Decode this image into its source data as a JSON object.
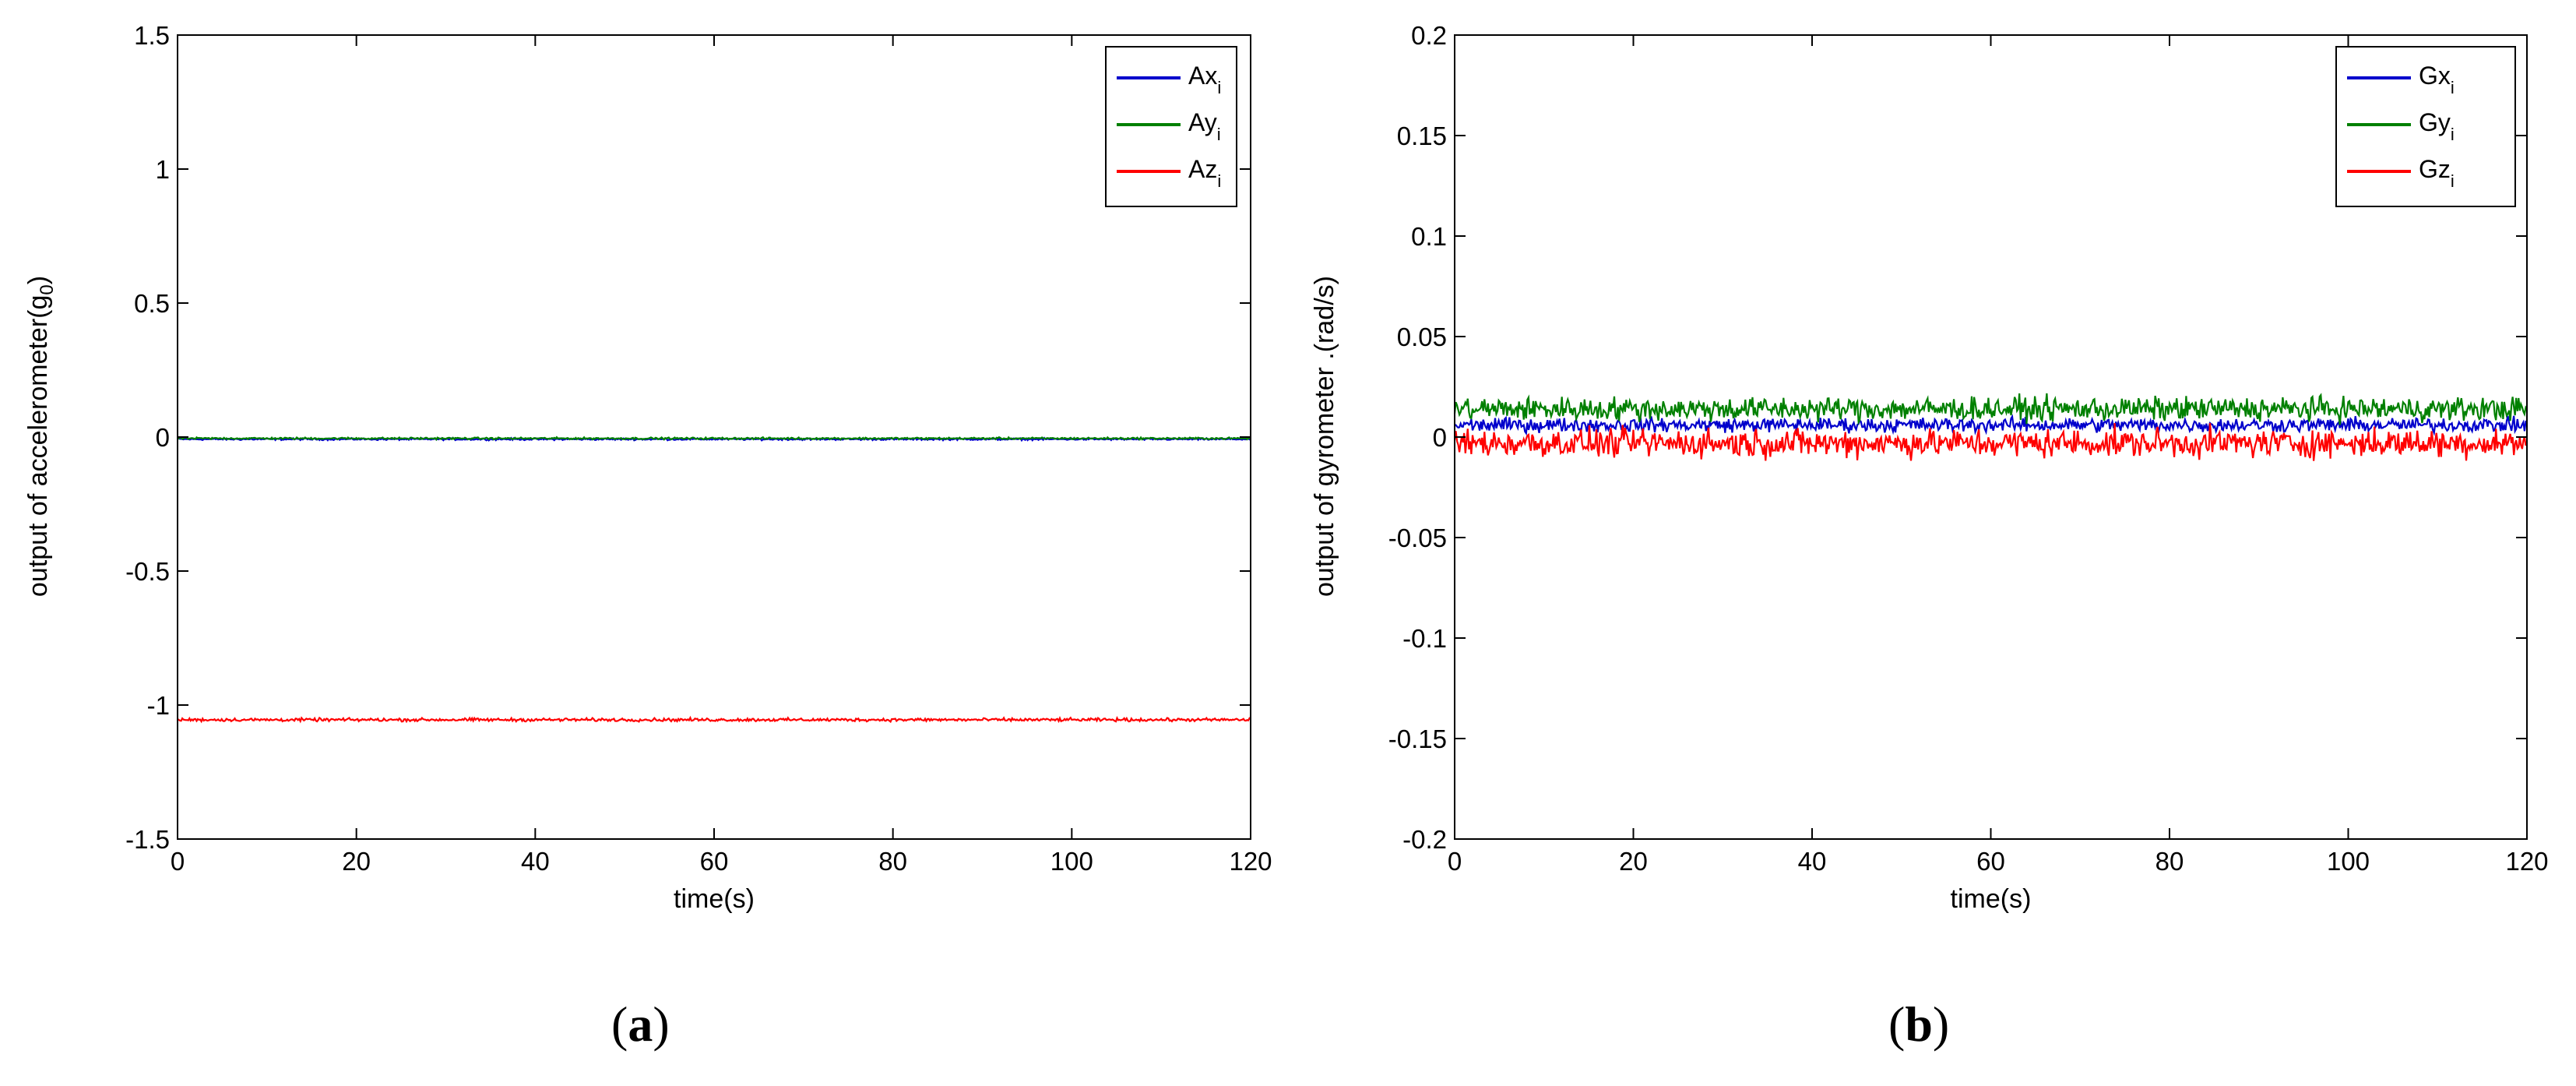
{
  "chart_data": [
    {
      "type": "line",
      "panel": "(a)",
      "xlabel": "time(s)",
      "ylabel": "output of accelerometer(g",
      "ylabel_sub": "0",
      "ylabel_end": ")",
      "xlim": [
        0,
        120
      ],
      "ylim": [
        -1.5,
        1.5
      ],
      "xticks": [
        0,
        20,
        40,
        60,
        80,
        100,
        120
      ],
      "yticks": [
        -1.5,
        -1,
        -0.5,
        0,
        0.5,
        1,
        1.5
      ],
      "grid": false,
      "legend_position": "top-right",
      "series": [
        {
          "name": "Ax",
          "subscript": "i",
          "color": "#0000cc",
          "mean": -0.008,
          "noise": 0.003
        },
        {
          "name": "Ay",
          "subscript": "i",
          "color": "#008000",
          "mean": -0.005,
          "noise": 0.003
        },
        {
          "name": "Az",
          "subscript": "i",
          "color": "#ff0000",
          "mean": -1.055,
          "noise": 0.005
        }
      ]
    },
    {
      "type": "line",
      "panel": "(b)",
      "xlabel": "time(s)",
      "ylabel": "output of gyrometer .(rad/s)",
      "xlim": [
        0,
        120
      ],
      "ylim": [
        -0.2,
        0.2
      ],
      "xticks": [
        0,
        20,
        40,
        60,
        80,
        100,
        120
      ],
      "yticks": [
        -0.2,
        -0.15,
        -0.1,
        -0.05,
        0,
        0.05,
        0.1,
        0.15,
        0.2
      ],
      "grid": false,
      "legend_position": "top-right",
      "series": [
        {
          "name": "Gx",
          "subscript": "i",
          "color": "#0000cc",
          "mean": 0.006,
          "noise": 0.003
        },
        {
          "name": "Gy",
          "subscript": "i",
          "color": "#008000",
          "mean": 0.014,
          "noise": 0.005
        },
        {
          "name": "Gz",
          "subscript": "i",
          "color": "#ff0000",
          "mean": -0.003,
          "noise": 0.006
        }
      ]
    }
  ],
  "captions": {
    "a_letter": "a",
    "b_letter": "b",
    "open": "(",
    "close": ")"
  }
}
